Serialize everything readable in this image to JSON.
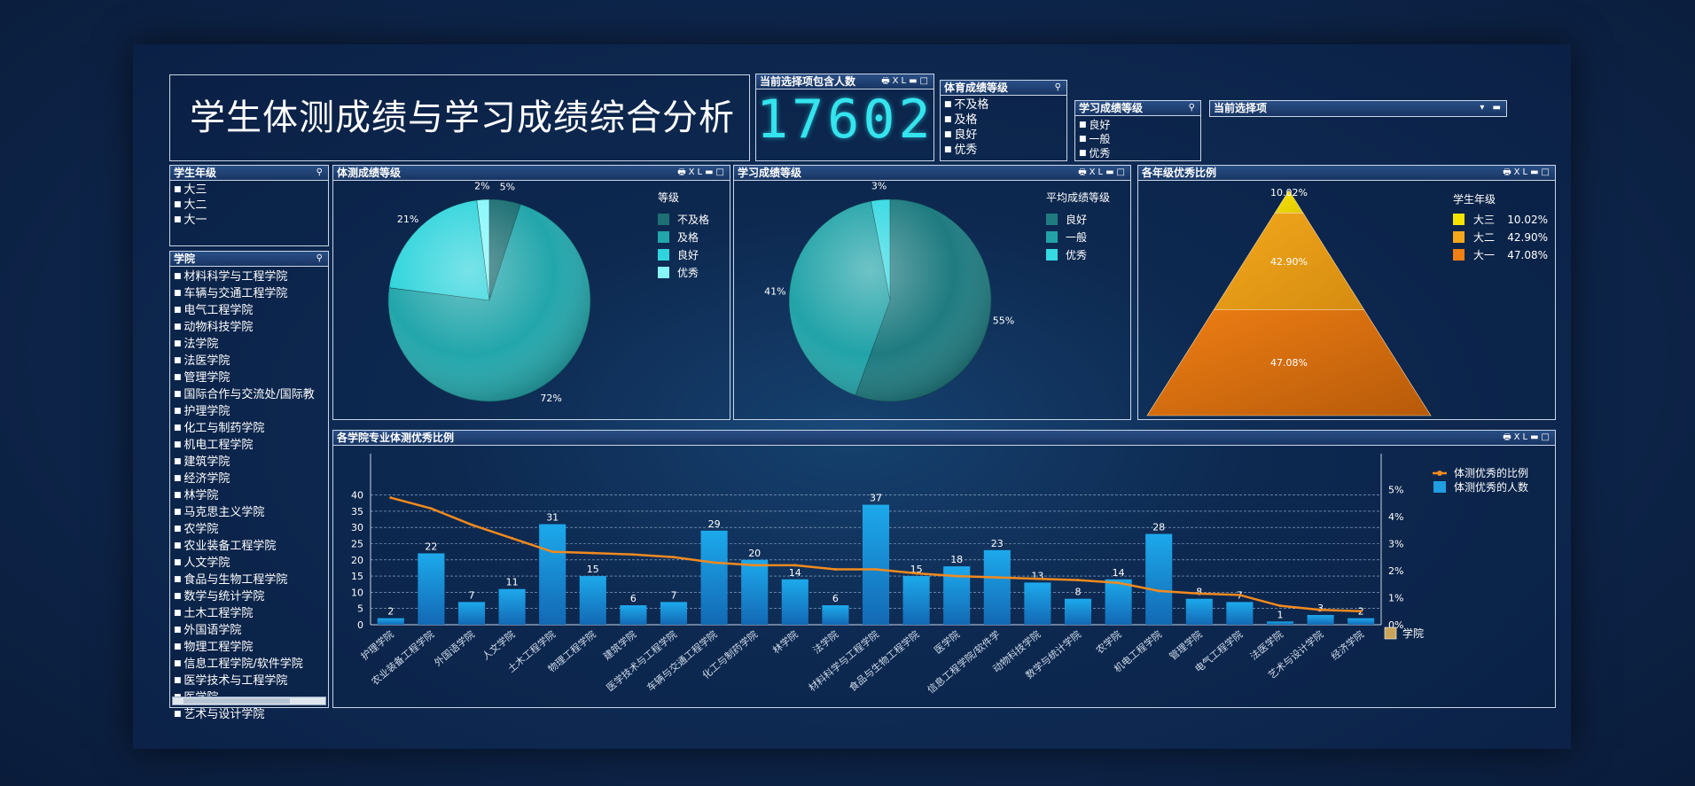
{
  "title": "学生体测成绩与学习成绩综合分析",
  "count_panel": {
    "caption": "当前选择项包含人数",
    "value": "17602"
  },
  "pe_filter": {
    "caption": "体育成绩等级",
    "items": [
      "不及格",
      "及格",
      "良好",
      "优秀"
    ]
  },
  "study_filter": {
    "caption": "学习成绩等级",
    "items": [
      "良好",
      "一般",
      "优秀"
    ]
  },
  "current_selection": {
    "caption": "当前选择项"
  },
  "grade_filter": {
    "caption": "学生年级",
    "items": [
      "大三",
      "大二",
      "大一"
    ]
  },
  "college_filter": {
    "caption": "学院",
    "items": [
      "材料科学与工程学院",
      "车辆与交通工程学院",
      "电气工程学院",
      "动物科技学院",
      "法学院",
      "法医学院",
      "管理学院",
      "国际合作与交流处/国际教",
      "护理学院",
      "化工与制药学院",
      "机电工程学院",
      "建筑学院",
      "经济学院",
      "林学院",
      "马克思主义学院",
      "农学院",
      "农业装备工程学院",
      "人文学院",
      "食品与生物工程学院",
      "数学与统计学院",
      "土木工程学院",
      "外国语学院",
      "物理工程学院",
      "信息工程学院/软件学院",
      "医学技术与工程学院",
      "医学院",
      "艺术与设计学院"
    ]
  },
  "icons": {
    "search": "search-icon",
    "print": "print-icon",
    "excel": "xl-icon",
    "minimize": "minimize-icon",
    "maximize": "maximize-icon",
    "dropdown": "chevron-down-icon",
    "dimension": "dimension-icon"
  },
  "colors": {
    "teal_dark": "#1e7b80",
    "teal": "#21a3a8",
    "teal_light": "#2fd0d9",
    "cyan": "#7ef6fb",
    "orange": "#f08a1e",
    "yellow": "#f8e600",
    "bar": "#1f9ee0",
    "counter": "#34e4ee"
  },
  "chart_data": [
    {
      "id": "pe_pie",
      "type": "pie",
      "caption": "体测成绩等级",
      "legend_title": "等级",
      "legend_position": "right",
      "labels": [
        "不及格",
        "及格",
        "良好",
        "优秀"
      ],
      "values": [
        5,
        72,
        21,
        2
      ],
      "value_labels": [
        "5%",
        "72%",
        "21%",
        "2%"
      ],
      "colors": [
        "#1d6f73",
        "#22a6ab",
        "#2fd4dc",
        "#86f6fa"
      ]
    },
    {
      "id": "study_pie",
      "type": "pie",
      "caption": "学习成绩等级",
      "legend_title": "平均成绩等级",
      "legend_position": "right",
      "labels": [
        "良好",
        "一般",
        "优秀"
      ],
      "values": [
        55,
        41,
        3
      ],
      "value_labels": [
        "55%",
        "41%",
        "3%"
      ],
      "colors": [
        "#1e7b80",
        "#21a3a8",
        "#35d9e2"
      ]
    },
    {
      "id": "grade_pyramid",
      "type": "pyramid",
      "caption": "各年级优秀比例",
      "legend_title": "学生年级",
      "legend_position": "right",
      "labels": [
        "大三",
        "大二",
        "大一"
      ],
      "values": [
        10.02,
        42.9,
        47.08
      ],
      "value_labels": [
        "10.02%",
        "42.90%",
        "47.08%"
      ],
      "colors": [
        "#f6e400",
        "#f3a81c",
        "#f07f14"
      ]
    },
    {
      "id": "college_combo",
      "type": "bar",
      "caption": "各学院专业体测优秀比例",
      "xlabel": "学院",
      "categories": [
        "护理学院",
        "农业装备工程学院",
        "外国语学院",
        "人文学院",
        "土木工程学院",
        "物理工程学院",
        "建筑学院",
        "医学技术与工程学院",
        "车辆与交通工程学院",
        "化工与制药学院",
        "林学院",
        "法学院",
        "材料科学与工程学院",
        "食品与生物工程学院",
        "医学院",
        "信息工程学院/软件学",
        "动物科技学院",
        "数学与统计学院",
        "农学院",
        "机电工程学院",
        "管理学院",
        "电气工程学院",
        "法医学院",
        "艺术与设计学院",
        "经济学院"
      ],
      "series": [
        {
          "name": "体测优秀的人数",
          "type": "bar",
          "axis": "left",
          "values": [
            2,
            22,
            7,
            11,
            31,
            15,
            6,
            7,
            29,
            20,
            14,
            6,
            37,
            15,
            18,
            23,
            13,
            8,
            14,
            28,
            8,
            7,
            1,
            3,
            2
          ]
        },
        {
          "name": "体测优秀的比例",
          "type": "line",
          "axis": "right",
          "values": [
            4.7,
            4.3,
            3.7,
            3.2,
            2.7,
            2.65,
            2.6,
            2.5,
            2.3,
            2.2,
            2.2,
            2.05,
            2.05,
            1.9,
            1.8,
            1.75,
            1.7,
            1.65,
            1.55,
            1.25,
            1.15,
            1.1,
            0.7,
            0.55,
            0.5
          ]
        }
      ],
      "ylim": [
        0,
        50
      ],
      "yticks": [
        0,
        5,
        10,
        15,
        20,
        25,
        30,
        35,
        40
      ],
      "y2lim": [
        0,
        6
      ],
      "y2ticks": [
        "0%",
        "1%",
        "2%",
        "3%",
        "4%",
        "5%"
      ],
      "grid": true,
      "legend_position": "top-right"
    }
  ]
}
